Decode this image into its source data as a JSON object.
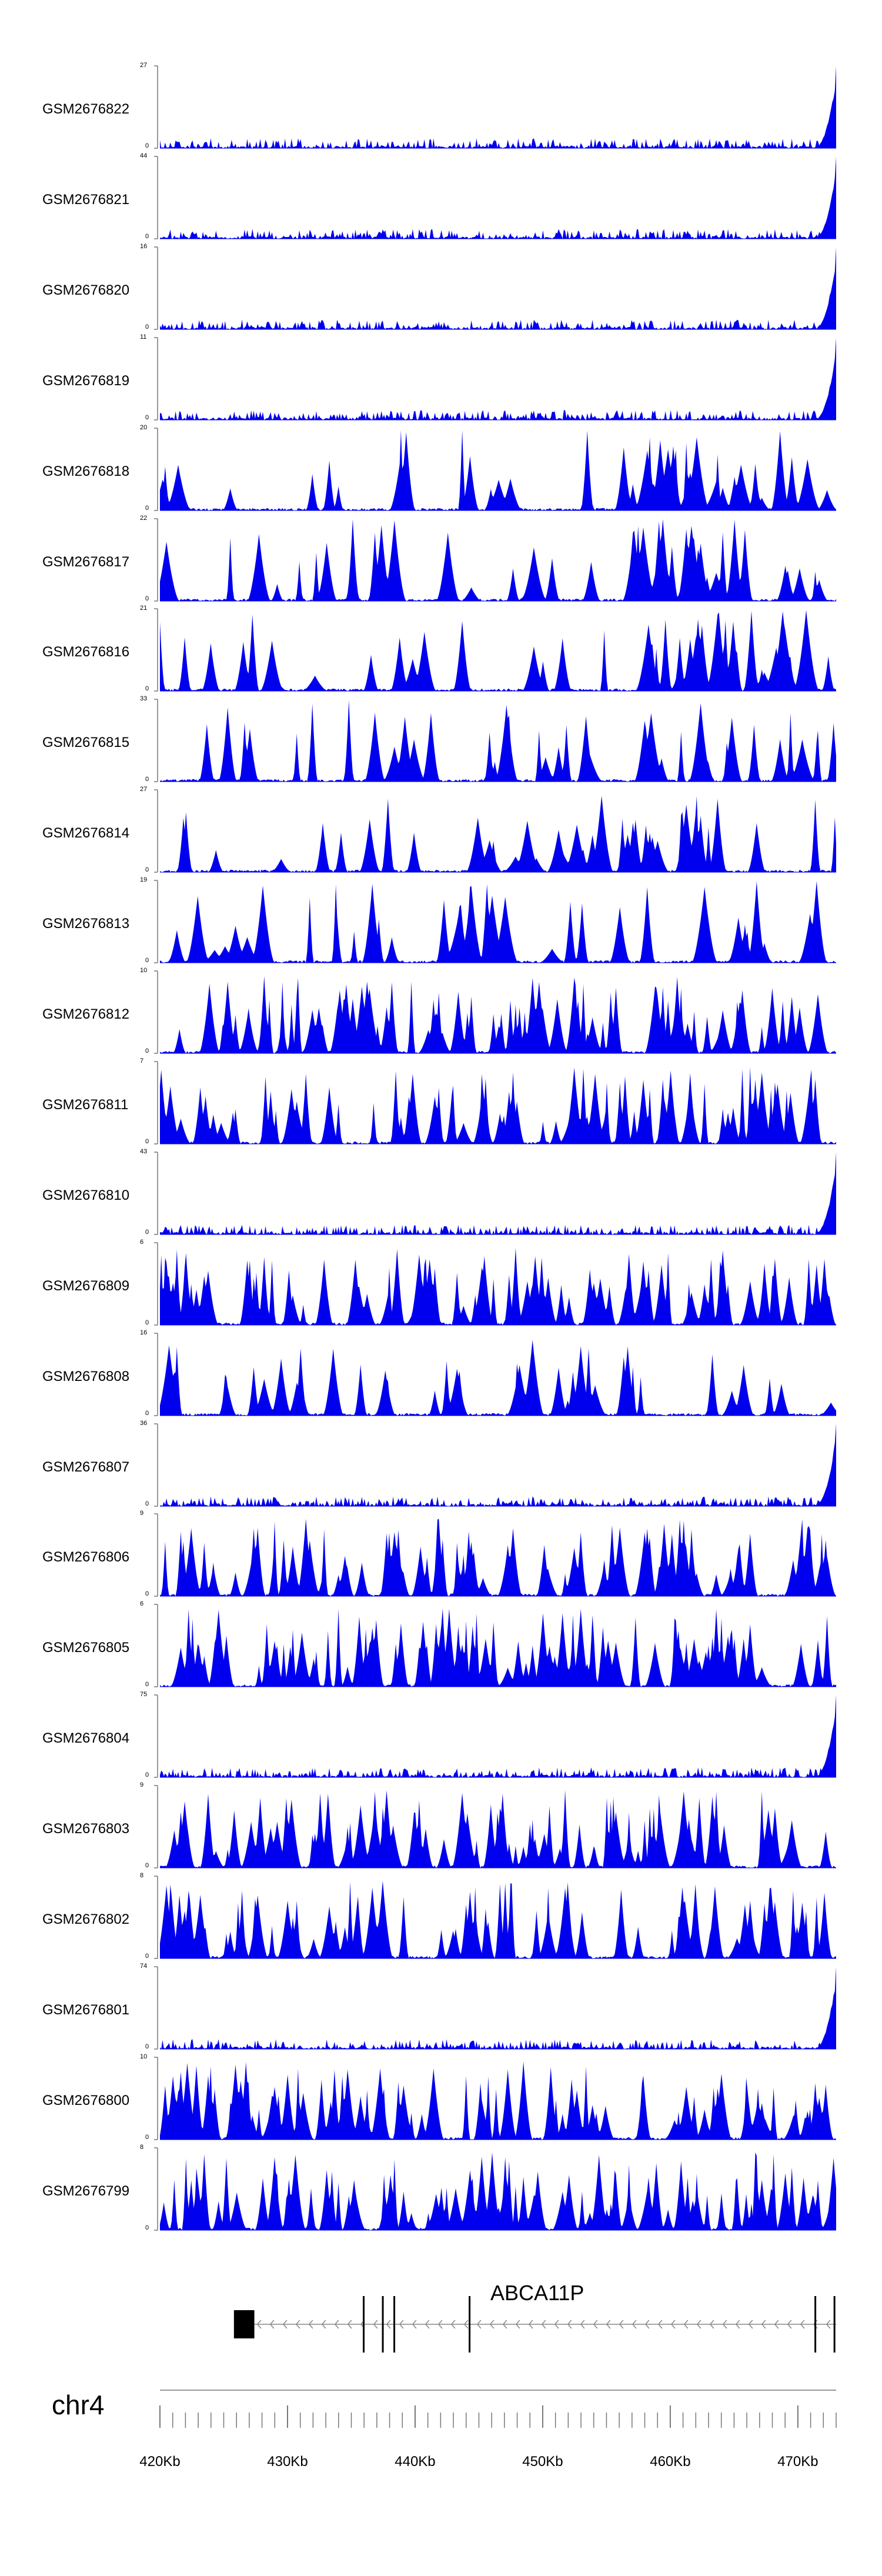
{
  "chart_data": {
    "type": "area",
    "title": "",
    "chromosome": "chr4",
    "xlabel": "",
    "xlim": [
      420000,
      473000
    ],
    "x_ticks": [
      {
        "value": 420000,
        "label": "420Kb"
      },
      {
        "value": 430000,
        "label": "430Kb"
      },
      {
        "value": 440000,
        "label": "440Kb"
      },
      {
        "value": 450000,
        "label": "450Kb"
      },
      {
        "value": 460000,
        "label": "460Kb"
      },
      {
        "value": 470000,
        "label": "470Kb"
      }
    ],
    "minor_tick_step": 1000,
    "colors": {
      "fill": "#0000ee",
      "axis": "#777777"
    },
    "series": [
      {
        "name": "GSM2676822",
        "ymax": 27,
        "profile": "flat_end_spike"
      },
      {
        "name": "GSM2676821",
        "ymax": 44,
        "profile": "flat_end_spike"
      },
      {
        "name": "GSM2676820",
        "ymax": 16,
        "profile": "flat_end_spike"
      },
      {
        "name": "GSM2676819",
        "ymax": 11,
        "profile": "flat_end_spike"
      },
      {
        "name": "GSM2676818",
        "ymax": 20,
        "profile": "sparse_right_cluster"
      },
      {
        "name": "GSM2676817",
        "ymax": 22,
        "profile": "sparse_center_cluster"
      },
      {
        "name": "GSM2676816",
        "ymax": 21,
        "profile": "sparse_right_cluster"
      },
      {
        "name": "GSM2676815",
        "ymax": 33,
        "profile": "sparse"
      },
      {
        "name": "GSM2676814",
        "ymax": 27,
        "profile": "sparse_center_cluster"
      },
      {
        "name": "GSM2676813",
        "ymax": 19,
        "profile": "sparse"
      },
      {
        "name": "GSM2676812",
        "ymax": 10,
        "profile": "dense"
      },
      {
        "name": "GSM2676811",
        "ymax": 7,
        "profile": "dense"
      },
      {
        "name": "GSM2676810",
        "ymax": 43,
        "profile": "flat_end_spike"
      },
      {
        "name": "GSM2676809",
        "ymax": 6,
        "profile": "dense"
      },
      {
        "name": "GSM2676808",
        "ymax": 16,
        "profile": "sparse"
      },
      {
        "name": "GSM2676807",
        "ymax": 36,
        "profile": "flat_end_spike"
      },
      {
        "name": "GSM2676806",
        "ymax": 9,
        "profile": "dense"
      },
      {
        "name": "GSM2676805",
        "ymax": 6,
        "profile": "dense"
      },
      {
        "name": "GSM2676804",
        "ymax": 75,
        "profile": "flat_end_spike"
      },
      {
        "name": "GSM2676803",
        "ymax": 9,
        "profile": "dense"
      },
      {
        "name": "GSM2676802",
        "ymax": 8,
        "profile": "dense"
      },
      {
        "name": "GSM2676801",
        "ymax": 74,
        "profile": "flat_end_spike"
      },
      {
        "name": "GSM2676800",
        "ymax": 10,
        "profile": "dense"
      },
      {
        "name": "GSM2676799",
        "ymax": 8,
        "profile": "dense"
      }
    ],
    "ymin": 0,
    "gene": {
      "name": "ABCA11P",
      "strand": "-",
      "start": 425800,
      "end": 473000,
      "exons": [
        {
          "start": 425800,
          "end": 427400
        },
        {
          "start": 435900,
          "end": 436000
        },
        {
          "start": 437400,
          "end": 437500
        },
        {
          "start": 438300,
          "end": 438400
        },
        {
          "start": 444200,
          "end": 444300
        },
        {
          "start": 471300,
          "end": 471400
        },
        {
          "start": 472800,
          "end": 472900
        }
      ]
    }
  }
}
